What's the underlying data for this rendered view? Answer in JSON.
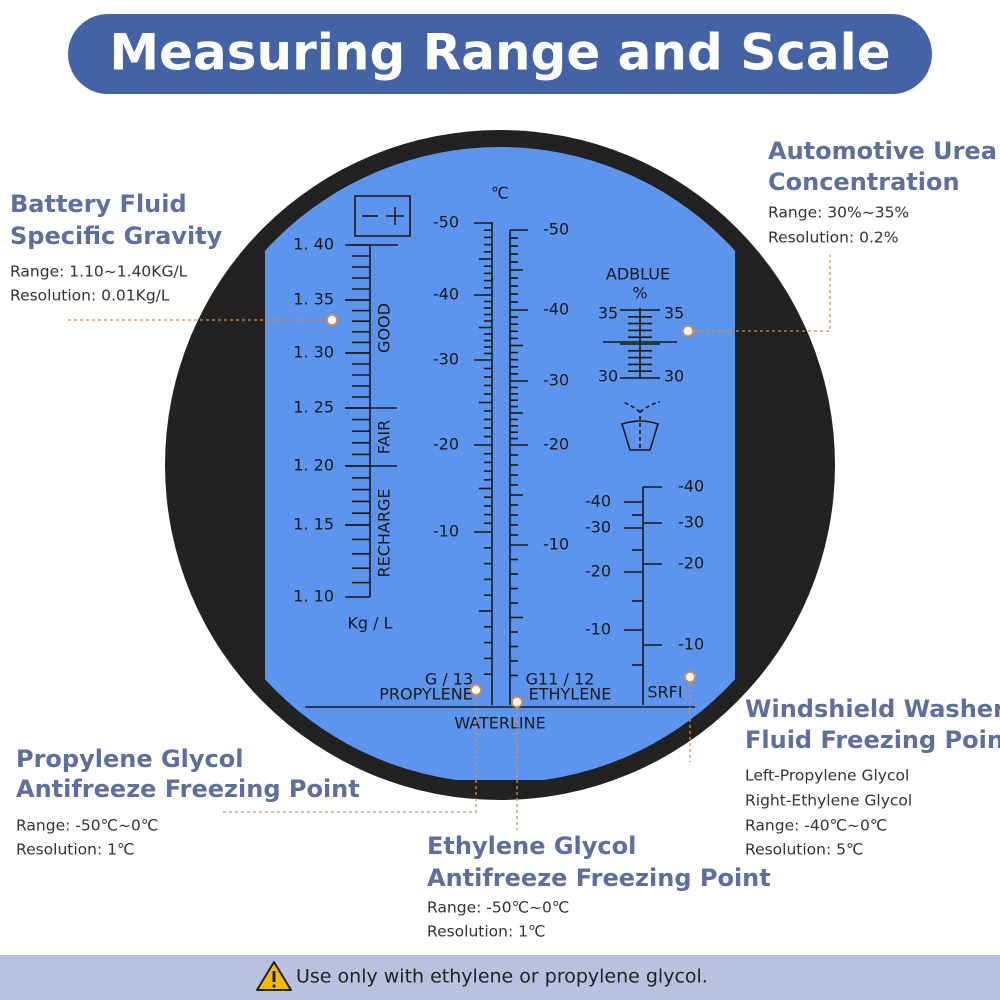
{
  "header": {
    "title": "Measuring Range and Scale"
  },
  "callouts": [
    {
      "heading": [
        "Battery Fluid",
        "Specific Gravity"
      ],
      "details": [
        "Range: 1.10~1.40KG/L",
        "Resolution: 0.01Kg/L"
      ]
    },
    {
      "heading": [
        "Automotive Urea",
        "Concentration"
      ],
      "details": [
        "Range: 30%~35%",
        "Resolution: 0.2%"
      ]
    },
    {
      "heading": [
        "Windshield Washer",
        "Fluid Freezing Point"
      ],
      "details": [
        "Left-Propylene Glycol",
        "Right-Ethylene Glycol",
        "Range: -40℃~0℃",
        "Resolution: 5℃"
      ]
    },
    {
      "heading": [
        "Propylene Glycol",
        "Antifreeze Freezing Point"
      ],
      "details": [
        "Range: -50℃~0℃",
        "Resolution: 1℃"
      ]
    },
    {
      "heading": [
        "Ethylene Glycol",
        "Antifreeze Freezing Point"
      ],
      "details": [
        "Range: -50℃~0℃",
        "Resolution: 1℃"
      ]
    }
  ],
  "scales": {
    "battery": {
      "labels": [
        "1. 40",
        "1. 35",
        "1. 30",
        "1. 25",
        "1. 20",
        "1. 15",
        "1. 10"
      ],
      "zones": [
        "GOOD",
        "FAIR",
        "RECHARGE"
      ],
      "unit": "Kg / L"
    },
    "temperature": {
      "unit": "℃",
      "propylene_labels": [
        "-50",
        "-40",
        "-30",
        "-20",
        "-10"
      ],
      "ethylene_labels": [
        "-50",
        "-40",
        "-30",
        "-20",
        "-10"
      ],
      "propylene_grade": "G / 13",
      "propylene_name": "PROPYLENE",
      "ethylene_grade": "G11 / 12",
      "ethylene_name": "ETHYLENE",
      "waterline": "WATERLINE"
    },
    "adblue": {
      "title": "ADBLUE",
      "unit": "%",
      "labels": [
        "35",
        "35",
        "30",
        "30"
      ]
    },
    "srfi": {
      "title": "SRFI",
      "left_labels": [
        "-40",
        "-30",
        "-20",
        "-10"
      ],
      "right_labels": [
        "-40",
        "-30",
        "-20",
        "-10"
      ]
    }
  },
  "footer": {
    "note": "Use only with ethylene or propylene glycol."
  }
}
